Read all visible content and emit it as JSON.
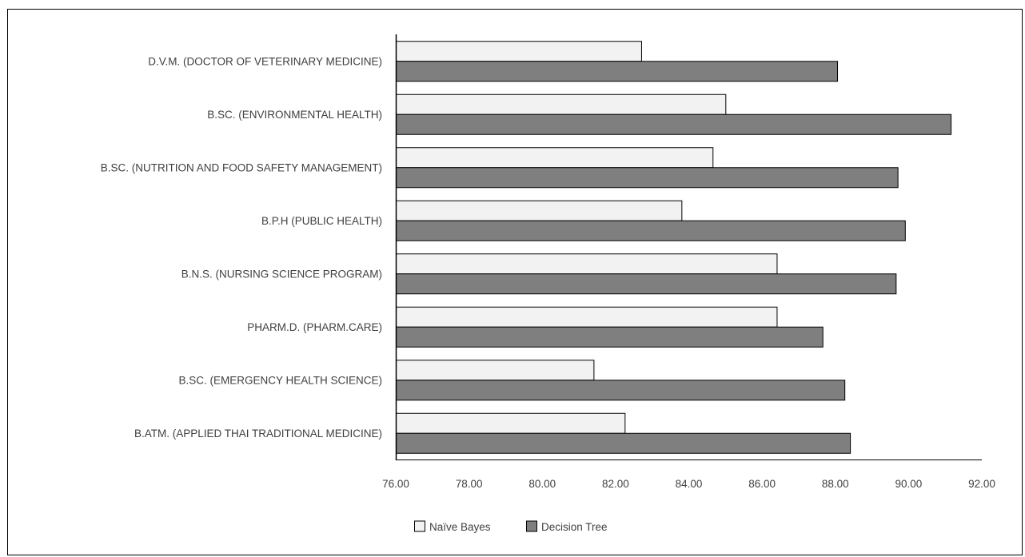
{
  "chart_data": {
    "type": "bar",
    "orientation": "horizontal",
    "title": "",
    "xlabel": "",
    "ylabel": "",
    "categories": [
      "D.V.M.  (DOCTOR OF VETERINARY MEDICINE)",
      "B.SC.  (ENVIRONMENTAL HEALTH)",
      "B.SC.  (NUTRITION AND FOOD SAFETY MANAGEMENT)",
      "B.P.H  (PUBLIC HEALTH)",
      "B.N.S.  (NURSING SCIENCE  PROGRAM)",
      "PHARM.D.  (PHARM.CARE)",
      "B.SC.  (EMERGENCY HEALTH SCIENCE)",
      "B.ATM.  (APPLIED  THAI  TRADITIONAL MEDICINE)"
    ],
    "series": [
      {
        "name": "Naïve Bayes",
        "color": "#f2f2f2",
        "values": [
          82.7,
          85.0,
          84.65,
          83.8,
          86.4,
          86.4,
          81.4,
          82.25
        ]
      },
      {
        "name": "Decision Tree",
        "color": "#7f7f7f",
        "values": [
          88.05,
          91.15,
          89.7,
          89.9,
          89.65,
          87.65,
          88.25,
          88.4
        ]
      }
    ],
    "xlim": [
      76,
      92
    ],
    "xticks": [
      "76.00",
      "78.00",
      "80.00",
      "82.00",
      "84.00",
      "86.00",
      "88.00",
      "90.00",
      "92.00"
    ],
    "grid": false,
    "legend_position": "bottom",
    "bar_outline_color": "#000000",
    "axis_color": "#000000"
  }
}
